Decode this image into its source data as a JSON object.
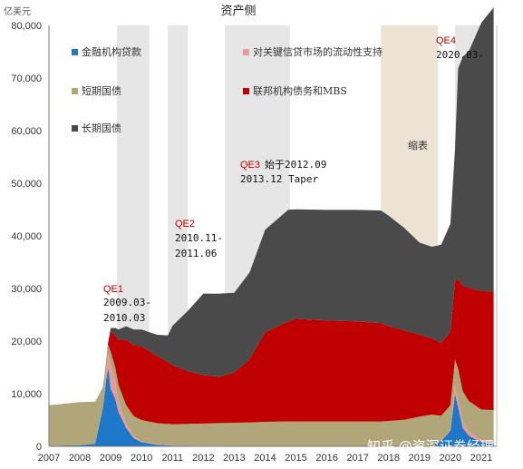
{
  "chart_data": {
    "type": "area",
    "stacked": true,
    "title": "资产侧",
    "y_unit": "亿美元",
    "x_ticks": [
      "2007",
      "2008",
      "2009",
      "2010",
      "2011",
      "2012",
      "2013",
      "2014",
      "2015",
      "2016",
      "2017",
      "2018",
      "2019",
      "2020",
      "2021"
    ],
    "y_ticks": [
      "0",
      "10,000",
      "20,000",
      "30,000",
      "40,000",
      "50,000",
      "60,000",
      "70,000",
      "80,000"
    ],
    "ylim": [
      0,
      80000
    ],
    "xlim": [
      2007.0,
      2021.5
    ],
    "grid": false,
    "legend_position": "top-left",
    "x": [
      2007.0,
      2008.0,
      2008.5,
      2008.75,
      2008.85,
      2008.92,
      2009.0,
      2009.15,
      2009.25,
      2009.5,
      2009.75,
      2010.0,
      2010.5,
      2010.85,
      2011.0,
      2011.5,
      2012.0,
      2012.5,
      2013.0,
      2013.5,
      2014.0,
      2014.75,
      2015.0,
      2016.0,
      2017.0,
      2017.75,
      2018.0,
      2018.5,
      2019.0,
      2019.4,
      2019.7,
      2020.0,
      2020.15,
      2020.25,
      2020.4,
      2020.6,
      2021.0,
      2021.4
    ],
    "series": [
      {
        "name": "金融机构贷款",
        "color": "#1f77c8",
        "values": [
          100,
          200,
          500,
          7500,
          12500,
          15000,
          11000,
          9000,
          6500,
          3500,
          1500,
          800,
          300,
          200,
          150,
          120,
          100,
          100,
          80,
          60,
          50,
          40,
          30,
          30,
          30,
          30,
          30,
          30,
          30,
          30,
          1000,
          3000,
          10000,
          7500,
          3500,
          2000,
          800,
          600
        ]
      },
      {
        "name": "对关键信贷市场的流动性支持",
        "color": "#e89a9a",
        "values": [
          0,
          0,
          0,
          300,
          1200,
          2500,
          4500,
          3200,
          2200,
          900,
          400,
          200,
          100,
          80,
          60,
          40,
          30,
          20,
          10,
          0,
          0,
          0,
          0,
          0,
          0,
          0,
          0,
          0,
          0,
          0,
          0,
          300,
          1500,
          1800,
          1200,
          800,
          400,
          300
        ]
      },
      {
        "name": "短期国债",
        "color": "#b0a679",
        "values": [
          7700,
          8200,
          8000,
          3500,
          2000,
          1800,
          2500,
          2800,
          3000,
          3400,
          3800,
          4000,
          4000,
          4000,
          4000,
          4100,
          4200,
          4300,
          4400,
          4500,
          4600,
          4700,
          4700,
          4700,
          4700,
          4700,
          4800,
          5000,
          5600,
          6000,
          4800,
          4500,
          5000,
          5500,
          5800,
          5800,
          5800,
          6000
        ]
      },
      {
        "name": "联邦机构债务和MBS",
        "color": "#c00000",
        "values": [
          0,
          0,
          0,
          0,
          200,
          600,
          4000,
          6000,
          8500,
          12500,
          13500,
          14000,
          12800,
          11800,
          11200,
          10000,
          9200,
          8800,
          9500,
          12000,
          17000,
          19000,
          19500,
          19200,
          19000,
          18700,
          18000,
          17000,
          15600,
          14500,
          13800,
          14000,
          15000,
          17000,
          20000,
          21500,
          22500,
          22500
        ]
      },
      {
        "name": "长期国债",
        "color": "#4a4a4a",
        "values": [
          0,
          0,
          0,
          0,
          0,
          0,
          500,
          1500,
          2000,
          2500,
          3000,
          3200,
          4000,
          5000,
          7500,
          11500,
          15500,
          15800,
          15200,
          16500,
          19500,
          21200,
          20800,
          21000,
          21200,
          21400,
          21000,
          19500,
          17500,
          17400,
          18700,
          20500,
          25000,
          40000,
          43500,
          45000,
          51000,
          54000
        ]
      }
    ]
  },
  "bands": [
    {
      "start": 2009.2,
      "end": 2010.25
    },
    {
      "start": 2010.85,
      "end": 2011.5
    },
    {
      "start": 2012.7,
      "end": 2014.8
    },
    {
      "start": 2017.75,
      "end": 2019.6
    },
    {
      "start": 2020.15,
      "end": 2021.4
    }
  ],
  "annotations": {
    "qe1_label": "QE1",
    "qe1_dates_1": "2009.03-",
    "qe1_dates_2": "2010.03",
    "qe2_label": "QE2",
    "qe2_dates_1": "2010.11-",
    "qe2_dates_2": "2011.06",
    "qe3_label": "QE3",
    "qe3_text_1": "始于2012.09",
    "qe3_text_2": "2013.12 Taper",
    "taper_label": "缩表",
    "qe4_label": "QE4",
    "qe4_dates": "2020.03-"
  },
  "watermark": "知乎 @资深证券经理"
}
